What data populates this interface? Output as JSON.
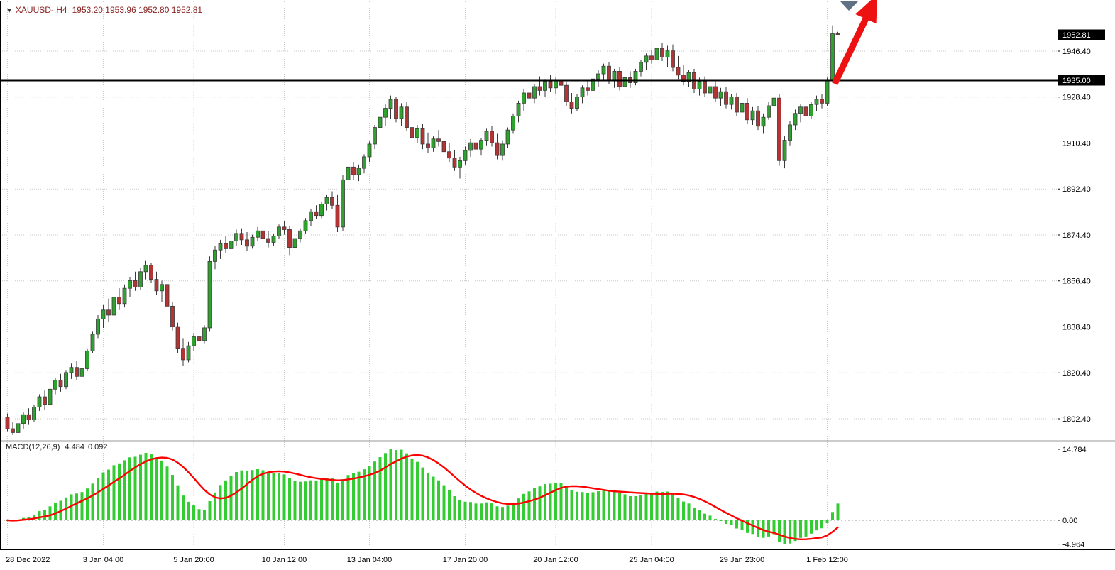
{
  "header": {
    "collapse_icon": "▼",
    "symbol": "XAUUSD-,H4",
    "ohlc": "1953.20 1953.96 1952.80 1952.81"
  },
  "price_axis": {
    "current_price_tag": "1952.81",
    "hline_tag": "1935.00"
  },
  "macd_panel": {
    "label": "MACD(12,26,9)",
    "value_main": "4.484",
    "value_signal": "0.092"
  },
  "colors": {
    "grid": "#c9c9c9",
    "candle_up": "#2fa12f",
    "candle_down": "#b23434",
    "candle_border": "#3a3a3a",
    "macd_hist": "#33cc33",
    "macd_signal": "#ff0000",
    "arrow": "#ee1111",
    "header_text": "#8b2323",
    "tag_bg": "#000000"
  },
  "chart_data": {
    "type": "candlestick",
    "symbol": "XAUUSD-",
    "timeframe": "H4",
    "title": "XAUUSD-,H4  1953.20 1953.96 1952.80 1952.81",
    "y_axis": {
      "ticks": [
        1946.4,
        1928.4,
        1910.4,
        1892.4,
        1874.4,
        1856.4,
        1838.4,
        1820.4,
        1802.4
      ],
      "hline": 1935.0,
      "current": 1952.81,
      "visible_range": [
        1794.0,
        1966.4
      ],
      "grid": true
    },
    "x_labels": [
      [
        0,
        "28 Dec 2022"
      ],
      [
        18,
        "3 Jan 04:00"
      ],
      [
        35,
        "5 Jan 20:00"
      ],
      [
        52,
        "10 Jan 12:00"
      ],
      [
        68,
        "13 Jan 04:00"
      ],
      [
        86,
        "17 Jan 20:00"
      ],
      [
        103,
        "20 Jan 12:00"
      ],
      [
        121,
        "25 Jan 04:00"
      ],
      [
        138,
        "29 Jan 23:00"
      ],
      [
        154,
        "1 Feb 12:00"
      ]
    ],
    "ohlc": [
      [
        1803,
        1804.5,
        1797.5,
        1798.5
      ],
      [
        1798.5,
        1801,
        1796,
        1797
      ],
      [
        1797,
        1801.5,
        1796.5,
        1800.5
      ],
      [
        1800.5,
        1805,
        1798.5,
        1804
      ],
      [
        1804,
        1806.5,
        1800,
        1802
      ],
      [
        1802,
        1808,
        1801,
        1807
      ],
      [
        1807,
        1812,
        1805.5,
        1811
      ],
      [
        1811,
        1813.5,
        1806,
        1808
      ],
      [
        1808,
        1815,
        1807,
        1814
      ],
      [
        1814,
        1818.5,
        1812,
        1817.5
      ],
      [
        1817.5,
        1820,
        1813,
        1815
      ],
      [
        1815,
        1821.5,
        1814,
        1820.5
      ],
      [
        1820.5,
        1824,
        1818,
        1822.5
      ],
      [
        1822.5,
        1825,
        1817.5,
        1819
      ],
      [
        1819,
        1823.5,
        1816,
        1822
      ],
      [
        1822,
        1830,
        1821,
        1829
      ],
      [
        1829,
        1836.5,
        1828,
        1835.5
      ],
      [
        1835.5,
        1843,
        1834,
        1841.5
      ],
      [
        1841.5,
        1847,
        1838,
        1845
      ],
      [
        1845,
        1849.5,
        1840.5,
        1843
      ],
      [
        1843,
        1851,
        1842,
        1850
      ],
      [
        1850,
        1853.5,
        1845,
        1847.5
      ],
      [
        1847.5,
        1855,
        1846,
        1853.5
      ],
      [
        1853.5,
        1858,
        1850,
        1856.5
      ],
      [
        1856.5,
        1860,
        1852.5,
        1854
      ],
      [
        1854,
        1861.5,
        1853,
        1860
      ],
      [
        1860,
        1864.5,
        1857,
        1862.5
      ],
      [
        1862.5,
        1863.5,
        1855.5,
        1857
      ],
      [
        1857,
        1860,
        1851,
        1852.5
      ],
      [
        1852.5,
        1856.5,
        1848,
        1855
      ],
      [
        1855,
        1857,
        1845,
        1846.5
      ],
      [
        1846.5,
        1848,
        1837,
        1838.5
      ],
      [
        1838.5,
        1840,
        1828,
        1830
      ],
      [
        1830,
        1834,
        1823,
        1825.5
      ],
      [
        1825.5,
        1832.5,
        1824.5,
        1831
      ],
      [
        1831,
        1836,
        1829,
        1834.5
      ],
      [
        1834.5,
        1837.5,
        1830.5,
        1833
      ],
      [
        1833,
        1839,
        1832,
        1838
      ],
      [
        1838,
        1866,
        1836.5,
        1864
      ],
      [
        1864,
        1870,
        1861,
        1868.5
      ],
      [
        1868.5,
        1872.5,
        1865,
        1871
      ],
      [
        1871,
        1874,
        1867.5,
        1869
      ],
      [
        1869,
        1873,
        1866,
        1872
      ],
      [
        1872,
        1876.5,
        1870,
        1875
      ],
      [
        1875,
        1877,
        1870.5,
        1872.5
      ],
      [
        1872.5,
        1875.5,
        1868,
        1870
      ],
      [
        1870,
        1874.5,
        1869,
        1873.5
      ],
      [
        1873.5,
        1877.5,
        1872,
        1876
      ],
      [
        1876,
        1878,
        1871.5,
        1873
      ],
      [
        1873,
        1876,
        1869.5,
        1871.5
      ],
      [
        1871.5,
        1875,
        1870,
        1874
      ],
      [
        1874,
        1878.5,
        1873,
        1877.5
      ],
      [
        1877.5,
        1880,
        1874.5,
        1876.5
      ],
      [
        1876.5,
        1878,
        1866.5,
        1869.5
      ],
      [
        1869.5,
        1874,
        1867,
        1873
      ],
      [
        1873,
        1877,
        1871.5,
        1876
      ],
      [
        1876,
        1881,
        1875,
        1880
      ],
      [
        1880,
        1884.5,
        1878,
        1883.5
      ],
      [
        1883.5,
        1886,
        1880.5,
        1882
      ],
      [
        1882,
        1887.5,
        1881,
        1886.5
      ],
      [
        1886.5,
        1890,
        1884,
        1889
      ],
      [
        1889,
        1891.5,
        1884.5,
        1886
      ],
      [
        1886,
        1890,
        1875.5,
        1877.5
      ],
      [
        1877.5,
        1898,
        1876,
        1896
      ],
      [
        1896,
        1902.5,
        1893,
        1901
      ],
      [
        1901,
        1903,
        1896,
        1898
      ],
      [
        1898,
        1902,
        1895.5,
        1900.5
      ],
      [
        1900.5,
        1906,
        1898.5,
        1905
      ],
      [
        1905,
        1911,
        1903,
        1910
      ],
      [
        1910,
        1917.5,
        1908,
        1916.5
      ],
      [
        1916.5,
        1922,
        1913.5,
        1920.5
      ],
      [
        1920.5,
        1925.5,
        1917,
        1924
      ],
      [
        1924,
        1929,
        1920,
        1927.5
      ],
      [
        1927.5,
        1928.5,
        1918.5,
        1920
      ],
      [
        1920,
        1926,
        1917,
        1924.5
      ],
      [
        1924.5,
        1926.5,
        1915,
        1916.5
      ],
      [
        1916.5,
        1920,
        1911,
        1912.5
      ],
      [
        1912.5,
        1917.5,
        1910.5,
        1916
      ],
      [
        1916,
        1918,
        1908,
        1910
      ],
      [
        1910,
        1914.5,
        1906.5,
        1908.5
      ],
      [
        1908.5,
        1913,
        1907,
        1912
      ],
      [
        1912,
        1915.5,
        1909,
        1911
      ],
      [
        1911,
        1913,
        1905.5,
        1907
      ],
      [
        1907,
        1910.5,
        1903,
        1904.5
      ],
      [
        1904.5,
        1907.5,
        1899.5,
        1901
      ],
      [
        1901,
        1905,
        1896.5,
        1903.5
      ],
      [
        1903.5,
        1909,
        1902,
        1907.5
      ],
      [
        1907.5,
        1912,
        1905,
        1910.5
      ],
      [
        1910.5,
        1913.5,
        1906.5,
        1908
      ],
      [
        1908,
        1912.5,
        1905.5,
        1911.5
      ],
      [
        1911.5,
        1916,
        1909.5,
        1915
      ],
      [
        1915,
        1917,
        1909,
        1910.5
      ],
      [
        1910.5,
        1914,
        1904,
        1905.5
      ],
      [
        1905.5,
        1911.5,
        1903.5,
        1910
      ],
      [
        1910,
        1916.5,
        1908.5,
        1915.5
      ],
      [
        1915.5,
        1922,
        1914,
        1921
      ],
      [
        1921,
        1927,
        1918.5,
        1926
      ],
      [
        1926,
        1931.5,
        1923,
        1930
      ],
      [
        1930,
        1934,
        1926.5,
        1928
      ],
      [
        1928,
        1933.5,
        1926,
        1932.5
      ],
      [
        1932.5,
        1936.5,
        1929,
        1931
      ],
      [
        1931,
        1935.5,
        1928.5,
        1934.5
      ],
      [
        1934.5,
        1937,
        1930.5,
        1932
      ],
      [
        1932,
        1936,
        1929.5,
        1935
      ],
      [
        1935,
        1938,
        1931.5,
        1933
      ],
      [
        1933,
        1934.5,
        1925,
        1926.5
      ],
      [
        1926.5,
        1930,
        1922,
        1924
      ],
      [
        1924,
        1929.5,
        1923,
        1928.5
      ],
      [
        1928.5,
        1933,
        1926,
        1932
      ],
      [
        1932,
        1935,
        1929,
        1931
      ],
      [
        1931,
        1936.5,
        1930,
        1935.5
      ],
      [
        1935.5,
        1939,
        1932.5,
        1937.5
      ],
      [
        1937.5,
        1941.5,
        1935,
        1940.5
      ],
      [
        1940.5,
        1942,
        1933.5,
        1935
      ],
      [
        1935,
        1939.5,
        1932,
        1938.5
      ],
      [
        1938.5,
        1940,
        1931,
        1932.5
      ],
      [
        1932.5,
        1937,
        1930.5,
        1936
      ],
      [
        1936,
        1938.5,
        1932,
        1934
      ],
      [
        1934,
        1939.5,
        1933,
        1938.5
      ],
      [
        1938.5,
        1943,
        1936.5,
        1942
      ],
      [
        1942,
        1945.5,
        1939,
        1944.5
      ],
      [
        1944.5,
        1947,
        1941.5,
        1943
      ],
      [
        1943,
        1948.5,
        1941,
        1947.5
      ],
      [
        1947.5,
        1949.5,
        1942.5,
        1944
      ],
      [
        1944,
        1948.5,
        1940,
        1946.5
      ],
      [
        1946.5,
        1949,
        1938.5,
        1940
      ],
      [
        1940,
        1944.5,
        1935.5,
        1937
      ],
      [
        1937,
        1941,
        1933,
        1934.5
      ],
      [
        1934.5,
        1939,
        1932.5,
        1938
      ],
      [
        1938,
        1939.5,
        1930,
        1931.5
      ],
      [
        1931.5,
        1936,
        1929,
        1934.5
      ],
      [
        1934.5,
        1936.5,
        1928.5,
        1930
      ],
      [
        1930,
        1934,
        1927,
        1932.5
      ],
      [
        1932.5,
        1934.5,
        1926.5,
        1928
      ],
      [
        1928,
        1932,
        1925,
        1930.5
      ],
      [
        1930.5,
        1932.5,
        1924,
        1925.5
      ],
      [
        1925.5,
        1929.5,
        1923.5,
        1928.5
      ],
      [
        1928.5,
        1930,
        1921,
        1922.5
      ],
      [
        1922.5,
        1927.5,
        1920.5,
        1926
      ],
      [
        1926,
        1928,
        1918,
        1919.5
      ],
      [
        1919.5,
        1924.5,
        1917.5,
        1923
      ],
      [
        1923,
        1925,
        1915.5,
        1917
      ],
      [
        1917,
        1922,
        1914,
        1920.5
      ],
      [
        1920.5,
        1926.5,
        1919.5,
        1925
      ],
      [
        1925,
        1929,
        1923.5,
        1928
      ],
      [
        1928,
        1929.5,
        1901.5,
        1903.5
      ],
      [
        1903.5,
        1913,
        1900.5,
        1911.5
      ],
      [
        1911.5,
        1919,
        1909.5,
        1917.5
      ],
      [
        1917.5,
        1923.5,
        1915.5,
        1922
      ],
      [
        1922,
        1925.5,
        1918.5,
        1924.5
      ],
      [
        1924.5,
        1926,
        1919.5,
        1921
      ],
      [
        1921,
        1926.5,
        1920,
        1925.5
      ],
      [
        1925.5,
        1929,
        1923,
        1927.5
      ],
      [
        1927.5,
        1929.5,
        1924,
        1926
      ],
      [
        1926,
        1936,
        1925,
        1935
      ],
      [
        1935,
        1956.5,
        1934,
        1953.2
      ],
      [
        1953.2,
        1953.96,
        1952.8,
        1952.81
      ]
    ],
    "indicator": {
      "type": "macd",
      "params": [
        12,
        26,
        9
      ],
      "current_main": 4.484,
      "current_signal": 0.092,
      "ticks": [
        14.784,
        0,
        -4.964
      ],
      "tick_labels": [
        "14.784",
        "0.00",
        "-4.964"
      ]
    },
    "annotations": [
      {
        "type": "horizontal-line",
        "price": 1935.0,
        "color": "#000000",
        "width": 3
      },
      {
        "type": "arrow",
        "direction": "up-right",
        "color": "#ee1111",
        "position": "above last candles, pointing past top edge"
      },
      {
        "type": "triangle-marker",
        "color": "#5f7285",
        "position": "top edge near arrow"
      }
    ]
  }
}
